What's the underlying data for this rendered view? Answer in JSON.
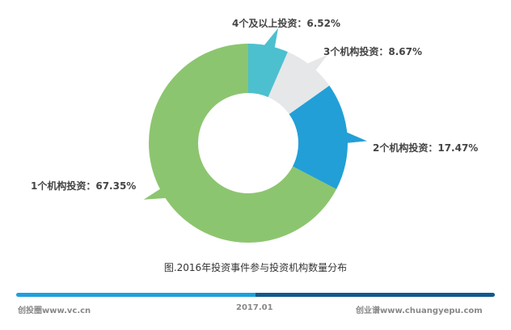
{
  "chart_data": {
    "type": "pie",
    "subtype": "donut",
    "title": "图.2016年投资事件参与投资机构数量分布",
    "slices": [
      {
        "label": "4个及以上投资",
        "value": 6.52,
        "text": "4个及以上投资：6.52%",
        "color": "#4cc0cf"
      },
      {
        "label": "3个机构投资",
        "value": 8.67,
        "text": "3个机构投资：8.67%",
        "color": "#e6e7e9"
      },
      {
        "label": "2个机构投资",
        "value": 17.47,
        "text": "2个机构投资：17.47%",
        "color": "#229fd6"
      },
      {
        "label": "1个机构投资",
        "value": 67.35,
        "text": "1个机构投资：67.35%",
        "color": "#8cc56f"
      }
    ]
  },
  "footer": {
    "left": "创投圈www.vc.cn",
    "center": "2017.01",
    "right": "创业谱www.chuangyepu.com",
    "bar_colors": [
      "#1ea0dd",
      "#12598d"
    ]
  }
}
